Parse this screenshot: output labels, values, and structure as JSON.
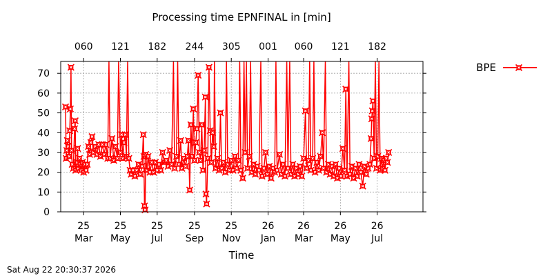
{
  "chart_data": {
    "type": "line",
    "title": "Processing time EPNFINAL in [min]",
    "xlabel": "Time",
    "ylabel": "",
    "ylim": [
      0,
      76
    ],
    "yticks": [
      0,
      10,
      20,
      30,
      40,
      50,
      60,
      70
    ],
    "grid": true,
    "legend_position": "top-right",
    "x_range": [
      "2025-01-22",
      "2026-09-15"
    ],
    "x_ticks_bottom": [
      {
        "date": "2025-03-01",
        "label_year": "25",
        "label_month": "Mar"
      },
      {
        "date": "2025-05-01",
        "label_year": "25",
        "label_month": "May"
      },
      {
        "date": "2025-07-01",
        "label_year": "25",
        "label_month": "Jul"
      },
      {
        "date": "2025-09-01",
        "label_year": "25",
        "label_month": "Sep"
      },
      {
        "date": "2025-11-01",
        "label_year": "25",
        "label_month": "Nov"
      },
      {
        "date": "2026-01-01",
        "label_year": "26",
        "label_month": "Jan"
      },
      {
        "date": "2026-03-01",
        "label_year": "26",
        "label_month": "Mar"
      },
      {
        "date": "2026-05-01",
        "label_year": "26",
        "label_month": "May"
      },
      {
        "date": "2026-07-01",
        "label_year": "26",
        "label_month": "Jul"
      }
    ],
    "x_ticks_top": [
      {
        "date": "2025-03-01",
        "label": "060"
      },
      {
        "date": "2025-05-01",
        "label": "121"
      },
      {
        "date": "2025-07-01",
        "label": "182"
      },
      {
        "date": "2025-09-01",
        "label": "244"
      },
      {
        "date": "2025-11-01",
        "label": "305"
      },
      {
        "date": "2026-01-01",
        "label": "001"
      },
      {
        "date": "2026-03-01",
        "label": "060"
      },
      {
        "date": "2026-05-01",
        "label": "121"
      },
      {
        "date": "2026-07-01",
        "label": "182"
      }
    ],
    "series": [
      {
        "name": "BPE",
        "color": "#ff0000",
        "marker": "x-square",
        "points": [
          [
            "2025-01-30",
            53
          ],
          [
            "2025-01-31",
            27
          ],
          [
            "2025-02-01",
            31
          ],
          [
            "2025-02-02",
            36
          ],
          [
            "2025-02-03",
            33
          ],
          [
            "2025-02-05",
            28
          ],
          [
            "2025-02-06",
            41
          ],
          [
            "2025-02-07",
            52
          ],
          [
            "2025-02-08",
            73
          ],
          [
            "2025-02-09",
            31
          ],
          [
            "2025-02-10",
            24
          ],
          [
            "2025-02-12",
            22
          ],
          [
            "2025-02-14",
            42
          ],
          [
            "2025-02-15",
            46
          ],
          [
            "2025-02-16",
            21
          ],
          [
            "2025-02-18",
            25
          ],
          [
            "2025-02-19",
            32
          ],
          [
            "2025-02-20",
            22
          ],
          [
            "2025-02-22",
            27
          ],
          [
            "2025-02-23",
            24
          ],
          [
            "2025-02-25",
            21
          ],
          [
            "2025-02-27",
            25
          ],
          [
            "2025-03-01",
            20
          ],
          [
            "2025-03-03",
            24
          ],
          [
            "2025-03-05",
            21
          ],
          [
            "2025-03-07",
            24
          ],
          [
            "2025-03-09",
            33
          ],
          [
            "2025-03-11",
            29
          ],
          [
            "2025-03-13",
            35
          ],
          [
            "2025-03-15",
            38
          ],
          [
            "2025-03-17",
            30
          ],
          [
            "2025-03-20",
            33
          ],
          [
            "2025-03-23",
            29
          ],
          [
            "2025-03-26",
            34
          ],
          [
            "2025-03-29",
            28
          ],
          [
            "2025-04-01",
            34
          ],
          [
            "2025-04-04",
            29
          ],
          [
            "2025-04-07",
            34
          ],
          [
            "2025-04-10",
            27
          ],
          [
            "2025-04-12",
            76
          ],
          [
            "2025-04-14",
            27
          ],
          [
            "2025-04-17",
            37
          ],
          [
            "2025-04-20",
            26
          ],
          [
            "2025-04-23",
            33
          ],
          [
            "2025-04-26",
            27
          ],
          [
            "2025-04-28",
            76
          ],
          [
            "2025-05-01",
            30
          ],
          [
            "2025-05-03",
            39
          ],
          [
            "2025-05-05",
            27
          ],
          [
            "2025-05-07",
            35
          ],
          [
            "2025-05-09",
            39
          ],
          [
            "2025-05-11",
            28
          ],
          [
            "2025-05-13",
            76
          ],
          [
            "2025-05-15",
            27
          ],
          [
            "2025-05-17",
            21
          ],
          [
            "2025-05-19",
            19
          ],
          [
            "2025-05-22",
            21
          ],
          [
            "2025-05-25",
            18
          ],
          [
            "2025-05-28",
            21
          ],
          [
            "2025-05-31",
            24
          ],
          [
            "2025-06-03",
            19
          ],
          [
            "2025-06-06",
            23
          ],
          [
            "2025-06-08",
            39
          ],
          [
            "2025-06-09",
            28
          ],
          [
            "2025-06-10",
            3
          ],
          [
            "2025-06-11",
            1
          ],
          [
            "2025-06-12",
            29
          ],
          [
            "2025-06-14",
            21
          ],
          [
            "2025-06-16",
            28
          ],
          [
            "2025-06-19",
            20
          ],
          [
            "2025-06-22",
            25
          ],
          [
            "2025-06-25",
            20
          ],
          [
            "2025-06-28",
            25
          ],
          [
            "2025-07-01",
            21
          ],
          [
            "2025-07-04",
            24
          ],
          [
            "2025-07-07",
            21
          ],
          [
            "2025-07-10",
            30
          ],
          [
            "2025-07-13",
            25
          ],
          [
            "2025-07-16",
            26
          ],
          [
            "2025-07-19",
            23
          ],
          [
            "2025-07-22",
            31
          ],
          [
            "2025-07-25",
            24
          ],
          [
            "2025-07-28",
            76
          ],
          [
            "2025-07-30",
            22
          ],
          [
            "2025-08-02",
            28
          ],
          [
            "2025-08-04",
            76
          ],
          [
            "2025-08-06",
            24
          ],
          [
            "2025-08-09",
            36
          ],
          [
            "2025-08-11",
            22
          ],
          [
            "2025-08-14",
            27
          ],
          [
            "2025-08-17",
            23
          ],
          [
            "2025-08-20",
            28
          ],
          [
            "2025-08-22",
            36
          ],
          [
            "2025-08-24",
            11
          ],
          [
            "2025-08-26",
            44
          ],
          [
            "2025-08-28",
            28
          ],
          [
            "2025-08-30",
            52
          ],
          [
            "2025-09-01",
            26
          ],
          [
            "2025-09-03",
            35
          ],
          [
            "2025-09-05",
            42
          ],
          [
            "2025-09-07",
            69
          ],
          [
            "2025-09-09",
            30
          ],
          [
            "2025-09-11",
            26
          ],
          [
            "2025-09-13",
            44
          ],
          [
            "2025-09-15",
            21
          ],
          [
            "2025-09-17",
            31
          ],
          [
            "2025-09-19",
            58
          ],
          [
            "2025-09-20",
            9
          ],
          [
            "2025-09-21",
            4
          ],
          [
            "2025-09-23",
            27
          ],
          [
            "2025-09-25",
            73
          ],
          [
            "2025-09-27",
            41
          ],
          [
            "2025-09-29",
            25
          ],
          [
            "2025-10-01",
            40
          ],
          [
            "2025-10-03",
            33
          ],
          [
            "2025-10-04",
            76
          ],
          [
            "2025-10-06",
            22
          ],
          [
            "2025-10-09",
            27
          ],
          [
            "2025-10-12",
            21
          ],
          [
            "2025-10-14",
            50
          ],
          [
            "2025-10-16",
            22
          ],
          [
            "2025-10-19",
            25
          ],
          [
            "2025-10-22",
            20
          ],
          [
            "2025-10-24",
            76
          ],
          [
            "2025-10-26",
            24
          ],
          [
            "2025-10-29",
            21
          ],
          [
            "2025-11-01",
            26
          ],
          [
            "2025-11-04",
            21
          ],
          [
            "2025-11-07",
            28
          ],
          [
            "2025-11-10",
            22
          ],
          [
            "2025-11-13",
            26
          ],
          [
            "2025-11-15",
            76
          ],
          [
            "2025-11-17",
            21
          ],
          [
            "2025-11-20",
            17
          ],
          [
            "2025-11-22",
            76
          ],
          [
            "2025-11-24",
            30
          ],
          [
            "2025-11-26",
            76
          ],
          [
            "2025-11-28",
            22
          ],
          [
            "2025-12-01",
            28
          ],
          [
            "2025-12-03",
            76
          ],
          [
            "2025-12-05",
            20
          ],
          [
            "2025-12-08",
            24
          ],
          [
            "2025-12-11",
            19
          ],
          [
            "2025-12-14",
            23
          ],
          [
            "2025-12-17",
            21
          ],
          [
            "2025-12-20",
            76
          ],
          [
            "2025-12-22",
            18
          ],
          [
            "2025-12-25",
            22
          ],
          [
            "2025-12-28",
            30
          ],
          [
            "2025-12-31",
            19
          ],
          [
            "2026-01-03",
            23
          ],
          [
            "2026-01-06",
            17
          ],
          [
            "2026-01-09",
            22
          ],
          [
            "2026-01-12",
            20
          ],
          [
            "2026-01-14",
            76
          ],
          [
            "2026-01-16",
            21
          ],
          [
            "2026-01-20",
            29
          ],
          [
            "2026-01-23",
            19
          ],
          [
            "2026-01-26",
            24
          ],
          [
            "2026-01-29",
            18
          ],
          [
            "2026-02-01",
            76
          ],
          [
            "2026-02-03",
            22
          ],
          [
            "2026-02-06",
            76
          ],
          [
            "2026-02-08",
            19
          ],
          [
            "2026-02-11",
            24
          ],
          [
            "2026-02-14",
            18
          ],
          [
            "2026-02-17",
            22
          ],
          [
            "2026-02-20",
            19
          ],
          [
            "2026-02-23",
            23
          ],
          [
            "2026-02-26",
            18
          ],
          [
            "2026-03-01",
            27
          ],
          [
            "2026-03-04",
            51
          ],
          [
            "2026-03-06",
            22
          ],
          [
            "2026-03-09",
            26
          ],
          [
            "2026-03-11",
            76
          ],
          [
            "2026-03-13",
            21
          ],
          [
            "2026-03-16",
            27
          ],
          [
            "2026-03-18",
            76
          ],
          [
            "2026-03-20",
            20
          ],
          [
            "2026-03-23",
            25
          ],
          [
            "2026-03-26",
            21
          ],
          [
            "2026-03-29",
            28
          ],
          [
            "2026-04-01",
            40
          ],
          [
            "2026-04-03",
            22
          ],
          [
            "2026-04-06",
            76
          ],
          [
            "2026-04-08",
            20
          ],
          [
            "2026-04-11",
            24
          ],
          [
            "2026-04-14",
            19
          ],
          [
            "2026-04-17",
            23
          ],
          [
            "2026-04-20",
            18
          ],
          [
            "2026-04-23",
            24
          ],
          [
            "2026-04-26",
            17
          ],
          [
            "2026-04-29",
            22
          ],
          [
            "2026-05-02",
            18
          ],
          [
            "2026-05-05",
            32
          ],
          [
            "2026-05-08",
            21
          ],
          [
            "2026-05-10",
            62
          ],
          [
            "2026-05-12",
            18
          ],
          [
            "2026-05-15",
            76
          ],
          [
            "2026-05-17",
            19
          ],
          [
            "2026-05-20",
            23
          ],
          [
            "2026-05-23",
            17
          ],
          [
            "2026-05-26",
            22
          ],
          [
            "2026-05-29",
            18
          ],
          [
            "2026-06-01",
            24
          ],
          [
            "2026-06-04",
            20
          ],
          [
            "2026-06-07",
            13
          ],
          [
            "2026-06-10",
            23
          ],
          [
            "2026-06-13",
            19
          ],
          [
            "2026-06-16",
            22
          ],
          [
            "2026-06-19",
            24
          ],
          [
            "2026-06-21",
            37
          ],
          [
            "2026-06-22",
            47
          ],
          [
            "2026-06-23",
            51
          ],
          [
            "2026-06-24",
            56
          ],
          [
            "2026-06-26",
            27
          ],
          [
            "2026-06-28",
            76
          ],
          [
            "2026-06-30",
            22
          ],
          [
            "2026-07-02",
            28
          ],
          [
            "2026-07-04",
            76
          ],
          [
            "2026-07-06",
            21
          ],
          [
            "2026-07-08",
            27
          ],
          [
            "2026-07-10",
            22
          ],
          [
            "2026-07-12",
            26
          ],
          [
            "2026-07-14",
            21
          ],
          [
            "2026-07-16",
            27
          ],
          [
            "2026-07-18",
            25
          ],
          [
            "2026-07-20",
            30
          ]
        ]
      }
    ]
  },
  "footer": {
    "timestamp": "Sat Aug 22 20:30:37 2026"
  }
}
